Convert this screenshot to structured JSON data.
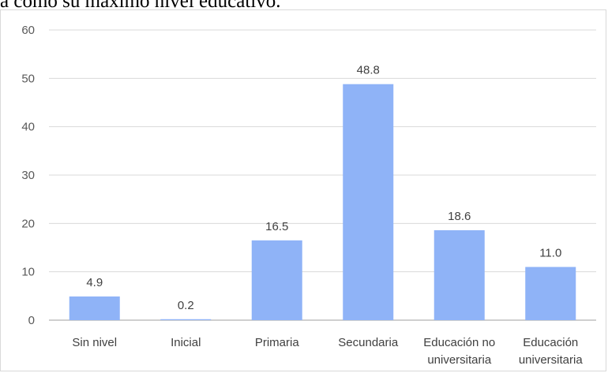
{
  "header_text": "a como su máximo nivel educativo.",
  "chart_data": {
    "type": "bar",
    "categories": [
      [
        "Sin nivel"
      ],
      [
        "Inicial"
      ],
      [
        "Primaria"
      ],
      [
        "Secundaria"
      ],
      [
        "Educación no",
        "universitaria"
      ],
      [
        "Educación",
        "universitaria"
      ]
    ],
    "values": [
      4.9,
      0.2,
      16.5,
      48.8,
      18.6,
      11.0
    ],
    "data_labels": [
      "4.9",
      "0.2",
      "16.5",
      "48.8",
      "18.6",
      "11.0"
    ],
    "ylim": [
      0,
      60
    ],
    "yticks": [
      0,
      10,
      20,
      30,
      40,
      50,
      60
    ],
    "grid": true,
    "bar_color": "#8fb3f7",
    "grid_color": "#d9d9d9",
    "axis_color": "#bfbfbf"
  }
}
